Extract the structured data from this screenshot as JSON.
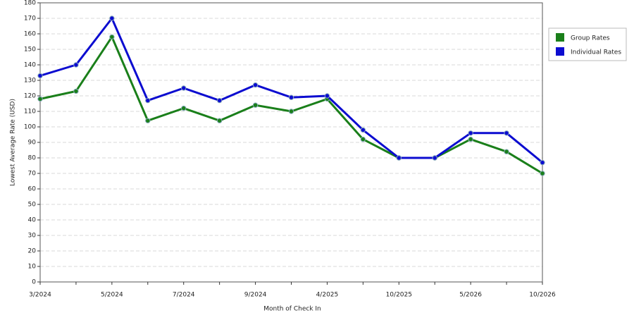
{
  "chart_data": {
    "type": "line",
    "xlabel": "Month of Check In",
    "ylabel": "Lowest Average Rate (USD)",
    "categories": [
      "3/2024",
      null,
      "5/2024",
      null,
      "7/2024",
      null,
      "9/2024",
      null,
      "4/2025",
      null,
      "10/2025",
      null,
      "5/2026",
      null,
      "10/2026"
    ],
    "series": [
      {
        "name": "Group Rates",
        "color": "#1a7f1a",
        "values": [
          118,
          123,
          158,
          104,
          112,
          104,
          114,
          110,
          118,
          92,
          80,
          80,
          92,
          84,
          70
        ]
      },
      {
        "name": "Individual Rates",
        "color": "#0c0cd0",
        "values": [
          133,
          140,
          170,
          117,
          125,
          117,
          127,
          119,
          120,
          98,
          80,
          80,
          96,
          96,
          77
        ]
      }
    ],
    "ylim": [
      0,
      180
    ],
    "yticks": [
      0,
      10,
      20,
      30,
      40,
      50,
      60,
      70,
      80,
      90,
      100,
      110,
      120,
      130,
      140,
      150,
      160,
      170,
      180
    ],
    "grid": true,
    "legend": "right"
  }
}
